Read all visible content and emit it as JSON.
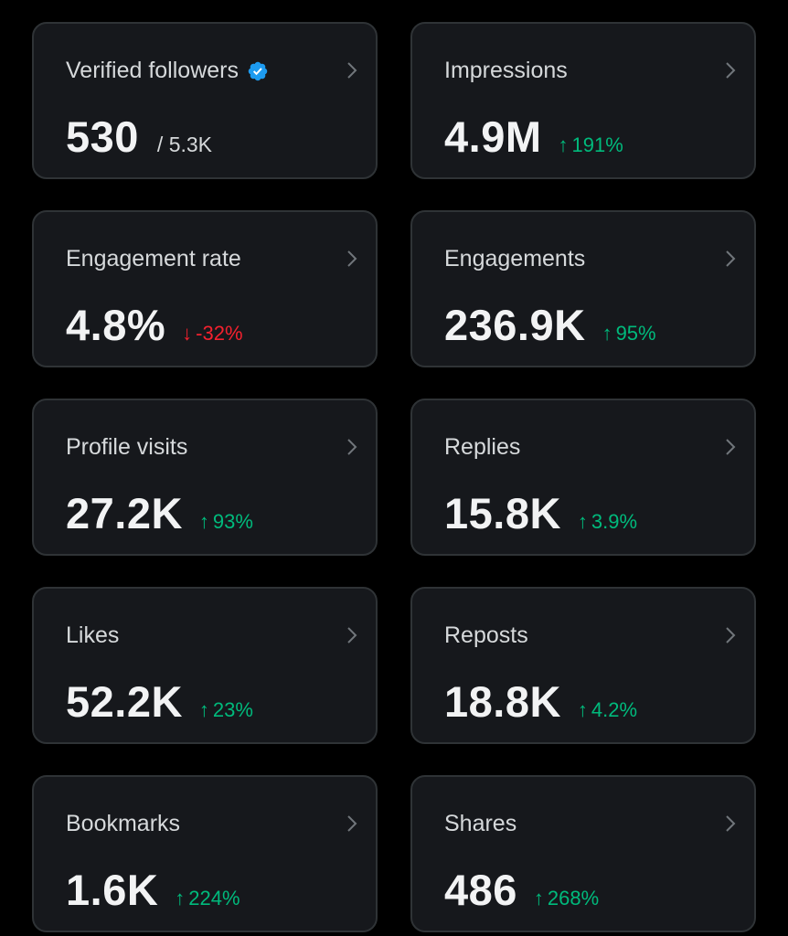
{
  "colors": {
    "background": "#000000",
    "card": "#16181c",
    "card_border": "#2f3336",
    "up": "#00ba7c",
    "down": "#f4212e",
    "verified": "#1d9bf0"
  },
  "metrics": [
    {
      "label": "Verified followers",
      "value": "530",
      "total": "/ 5.3K",
      "verified_icon": "verified-badge-icon"
    },
    {
      "label": "Impressions",
      "value": "4.9M",
      "change": "191%",
      "direction": "up"
    },
    {
      "label": "Engagement rate",
      "value": "4.8%",
      "change": "-32%",
      "direction": "down"
    },
    {
      "label": "Engagements",
      "value": "236.9K",
      "change": "95%",
      "direction": "up"
    },
    {
      "label": "Profile visits",
      "value": "27.2K",
      "change": "93%",
      "direction": "up"
    },
    {
      "label": "Replies",
      "value": "15.8K",
      "change": "3.9%",
      "direction": "up"
    },
    {
      "label": "Likes",
      "value": "52.2K",
      "change": "23%",
      "direction": "up"
    },
    {
      "label": "Reposts",
      "value": "18.8K",
      "change": "4.2%",
      "direction": "up"
    },
    {
      "label": "Bookmarks",
      "value": "1.6K",
      "change": "224%",
      "direction": "up"
    },
    {
      "label": "Shares",
      "value": "486",
      "change": "268%",
      "direction": "up"
    }
  ]
}
